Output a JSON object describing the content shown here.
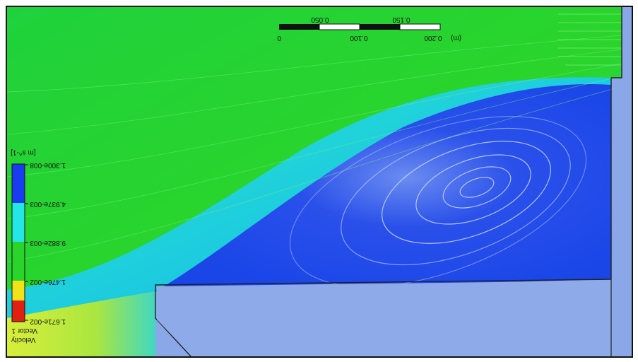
{
  "legend": {
    "title_line1": "Velocity",
    "title_line2": "Vector 1",
    "ticks": [
      "1.671e-002",
      "1.476e-002",
      "9.882e-003",
      "4.937e-003",
      "1.300e-008"
    ],
    "unit": "[m s^-1]",
    "colors": [
      "#e02010",
      "#f2e21a",
      "#2ad42a",
      "#25e6e6",
      "#1a3cf0"
    ]
  },
  "scale_bar": {
    "top_labels": [
      "0.050",
      "0.150"
    ],
    "bottom_labels": [
      "0",
      "0.100",
      "0.200",
      "(m)"
    ]
  },
  "colors": {
    "background_solid": "#8aa0e6",
    "inlet_region": "#d6ef3a",
    "main_flow": "#2ad42a",
    "mixing_layer": "#25e6e6",
    "recirculation": "#1a46e8"
  }
}
